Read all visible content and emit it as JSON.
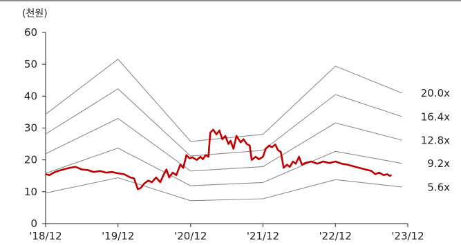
{
  "chart_data": {
    "type": "line",
    "unit_label": "(천원)",
    "ylim": [
      0,
      60
    ],
    "y_ticks": [
      0,
      10,
      20,
      30,
      40,
      50,
      60
    ],
    "x_range": [
      "2018-12",
      "2023-12"
    ],
    "x_ticks": [
      {
        "date": "2018-12",
        "label": "'18/12"
      },
      {
        "date": "2019-12",
        "label": "'19/12"
      },
      {
        "date": "2020-12",
        "label": "'20/12"
      },
      {
        "date": "2021-12",
        "label": "'21/12"
      },
      {
        "date": "2022-12",
        "label": "'22/12"
      },
      {
        "date": "2023-12",
        "label": "'23/12"
      }
    ],
    "grid": false,
    "series": [
      {
        "name": "20.0x",
        "color": "#8c8c8c",
        "points": [
          [
            "2018-12",
            34.3
          ],
          [
            "2019-12",
            51.6
          ],
          [
            "2020-12",
            25.8
          ],
          [
            "2021-12",
            28.0
          ],
          [
            "2022-12",
            49.4
          ],
          [
            "2023-11",
            41.0
          ]
        ]
      },
      {
        "name": "16.4x",
        "color": "#8c8c8c",
        "points": [
          [
            "2018-12",
            28.1
          ],
          [
            "2019-12",
            42.3
          ],
          [
            "2020-12",
            21.2
          ],
          [
            "2021-12",
            23.0
          ],
          [
            "2022-12",
            40.5
          ],
          [
            "2023-11",
            33.6
          ]
        ]
      },
      {
        "name": "12.8x",
        "color": "#8c8c8c",
        "points": [
          [
            "2018-12",
            21.9
          ],
          [
            "2019-12",
            33.0
          ],
          [
            "2020-12",
            16.5
          ],
          [
            "2021-12",
            17.9
          ],
          [
            "2022-12",
            31.6
          ],
          [
            "2023-11",
            26.2
          ]
        ]
      },
      {
        "name": "9.2x",
        "color": "#8c8c8c",
        "points": [
          [
            "2018-12",
            15.8
          ],
          [
            "2019-12",
            23.7
          ],
          [
            "2020-12",
            11.9
          ],
          [
            "2021-12",
            12.9
          ],
          [
            "2022-12",
            22.7
          ],
          [
            "2023-11",
            18.9
          ]
        ]
      },
      {
        "name": "5.6x",
        "color": "#8c8c8c",
        "points": [
          [
            "2018-12",
            9.6
          ],
          [
            "2019-12",
            14.4
          ],
          [
            "2020-12",
            7.2
          ],
          [
            "2021-12",
            7.8
          ],
          [
            "2022-12",
            13.8
          ],
          [
            "2023-11",
            11.5
          ]
        ]
      },
      {
        "name": "",
        "color": "#c00000",
        "points": [
          [
            "2018-12-01",
            15.5
          ],
          [
            "2018-12-20",
            15.2
          ],
          [
            "2019-01-10",
            16.0
          ],
          [
            "2019-02-01",
            16.5
          ],
          [
            "2019-03-01",
            17.0
          ],
          [
            "2019-04-01",
            17.5
          ],
          [
            "2019-05-01",
            17.8
          ],
          [
            "2019-06-01",
            17.0
          ],
          [
            "2019-07-01",
            16.8
          ],
          [
            "2019-08-01",
            16.2
          ],
          [
            "2019-09-01",
            16.5
          ],
          [
            "2019-10-01",
            16.0
          ],
          [
            "2019-11-01",
            16.2
          ],
          [
            "2019-12-01",
            15.8
          ],
          [
            "2020-01-01",
            15.5
          ],
          [
            "2020-02-01",
            14.5
          ],
          [
            "2020-02-20",
            14.2
          ],
          [
            "2020-03-10",
            10.8
          ],
          [
            "2020-03-25",
            11.2
          ],
          [
            "2020-04-10",
            12.5
          ],
          [
            "2020-05-01",
            13.5
          ],
          [
            "2020-05-20",
            13.0
          ],
          [
            "2020-06-10",
            14.5
          ],
          [
            "2020-07-01",
            13.0
          ],
          [
            "2020-07-15",
            15.0
          ],
          [
            "2020-08-01",
            17.0
          ],
          [
            "2020-08-15",
            14.5
          ],
          [
            "2020-09-01",
            16.0
          ],
          [
            "2020-09-20",
            15.2
          ],
          [
            "2020-10-10",
            18.5
          ],
          [
            "2020-10-25",
            17.5
          ],
          [
            "2020-11-10",
            21.5
          ],
          [
            "2020-11-25",
            20.5
          ],
          [
            "2020-12-10",
            20.8
          ],
          [
            "2021-01-01",
            20.0
          ],
          [
            "2021-01-20",
            21.0
          ],
          [
            "2021-02-01",
            20.2
          ],
          [
            "2021-02-15",
            21.5
          ],
          [
            "2021-03-01",
            21.0
          ],
          [
            "2021-03-10",
            28.5
          ],
          [
            "2021-03-25",
            29.5
          ],
          [
            "2021-04-10",
            28.0
          ],
          [
            "2021-04-25",
            29.2
          ],
          [
            "2021-05-10",
            26.5
          ],
          [
            "2021-05-25",
            27.5
          ],
          [
            "2021-06-10",
            25.0
          ],
          [
            "2021-06-20",
            26.0
          ],
          [
            "2021-07-05",
            23.5
          ],
          [
            "2021-07-20",
            27.5
          ],
          [
            "2021-08-10",
            25.5
          ],
          [
            "2021-08-25",
            26.5
          ],
          [
            "2021-09-10",
            25.0
          ],
          [
            "2021-09-25",
            24.5
          ],
          [
            "2021-10-05",
            20.0
          ],
          [
            "2021-10-25",
            21.0
          ],
          [
            "2021-11-10",
            20.2
          ],
          [
            "2021-12-01",
            21.0
          ],
          [
            "2021-12-15",
            23.5
          ],
          [
            "2022-01-01",
            24.5
          ],
          [
            "2022-01-15",
            24.0
          ],
          [
            "2022-02-01",
            24.8
          ],
          [
            "2022-02-15",
            23.0
          ],
          [
            "2022-03-01",
            22.5
          ],
          [
            "2022-03-15",
            17.5
          ],
          [
            "2022-04-01",
            18.5
          ],
          [
            "2022-04-15",
            17.8
          ],
          [
            "2022-05-01",
            19.5
          ],
          [
            "2022-05-15",
            18.8
          ],
          [
            "2022-06-01",
            21.0
          ],
          [
            "2022-06-15",
            18.5
          ],
          [
            "2022-07-01",
            19.0
          ],
          [
            "2022-08-01",
            19.5
          ],
          [
            "2022-09-01",
            18.8
          ],
          [
            "2022-10-01",
            19.5
          ],
          [
            "2022-11-01",
            19.0
          ],
          [
            "2022-12-01",
            19.5
          ],
          [
            "2023-01-01",
            18.8
          ],
          [
            "2023-02-01",
            18.5
          ],
          [
            "2023-03-01",
            18.0
          ],
          [
            "2023-04-01",
            17.5
          ],
          [
            "2023-05-01",
            17.0
          ],
          [
            "2023-06-01",
            16.5
          ],
          [
            "2023-06-20",
            15.5
          ],
          [
            "2023-07-10",
            16.0
          ],
          [
            "2023-08-01",
            15.2
          ],
          [
            "2023-08-20",
            15.5
          ],
          [
            "2023-09-01",
            15.0
          ],
          [
            "2023-09-10",
            15.2
          ]
        ]
      }
    ]
  }
}
